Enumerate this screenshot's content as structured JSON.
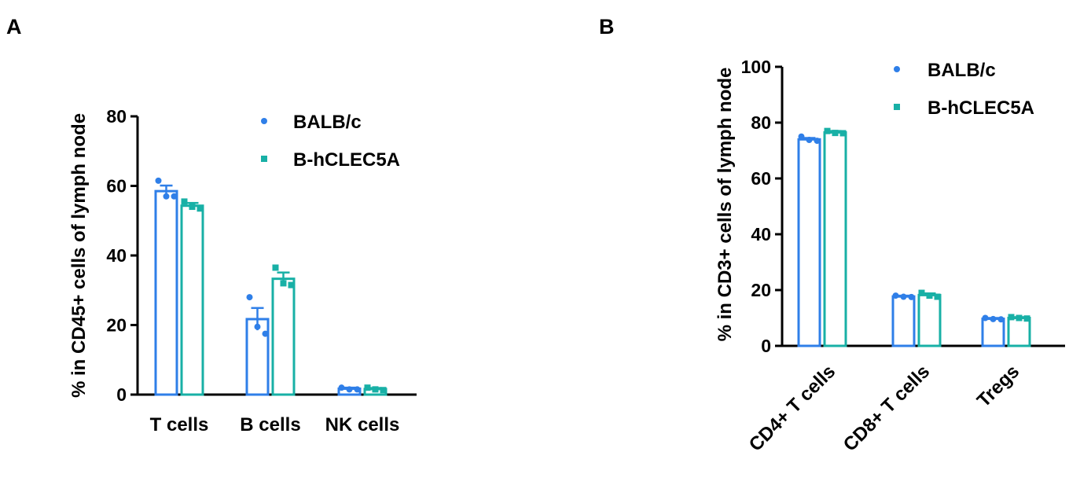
{
  "colors": {
    "BALB/c": "#2f7fe8",
    "B-hCLEC5A": "#18b0a6",
    "axis": "#000000"
  },
  "chart_data": [
    {
      "panel_label": "A",
      "type": "bar",
      "ylabel": "% in CD45+ cells of lymph node",
      "xlabel": "",
      "ylim": [
        0,
        80
      ],
      "yticks": [
        0,
        20,
        40,
        60,
        80
      ],
      "categories": [
        "T cells",
        "B cells",
        "NK cells"
      ],
      "legend_position": "top-right",
      "series": [
        {
          "name": "BALB/c",
          "marker": "circle",
          "values": [
            58.5,
            21.7,
            1.7
          ],
          "errors": [
            1.6,
            3.2,
            0.3
          ],
          "points": [
            [
              61.5,
              57.0,
              57.0
            ],
            [
              28.0,
              19.5,
              17.5
            ],
            [
              2.0,
              1.5,
              1.5
            ]
          ]
        },
        {
          "name": "B-hCLEC5A",
          "marker": "square",
          "values": [
            54.3,
            33.3,
            1.6
          ],
          "errors": [
            0.8,
            1.8,
            0.3
          ],
          "points": [
            [
              55.5,
              54.0,
              53.5
            ],
            [
              36.5,
              32.0,
              31.5
            ],
            [
              2.0,
              1.5,
              1.3
            ]
          ]
        }
      ]
    },
    {
      "panel_label": "B",
      "type": "bar",
      "ylabel": "% in CD3+ cells of lymph node",
      "xlabel": "",
      "ylim": [
        0,
        100
      ],
      "yticks": [
        0,
        20,
        40,
        60,
        80,
        100
      ],
      "categories": [
        "CD4+ T cells",
        "CD8+ T cells",
        "Tregs"
      ],
      "xtick_rotation": -45,
      "legend_position": "top-right",
      "series": [
        {
          "name": "BALB/c",
          "marker": "circle",
          "values": [
            74.0,
            17.7,
            9.7
          ],
          "errors": [
            0.5,
            0.3,
            0.3
          ],
          "points": [
            [
              75.0,
              73.8,
              73.5
            ],
            [
              18.0,
              17.6,
              17.5
            ],
            [
              10.0,
              9.6,
              9.5
            ]
          ]
        },
        {
          "name": "B-hCLEC5A",
          "marker": "square",
          "values": [
            76.5,
            18.2,
            10.0
          ],
          "errors": [
            0.5,
            0.6,
            0.3
          ],
          "points": [
            [
              77.0,
              76.3,
              76.2
            ],
            [
              19.0,
              18.0,
              17.6
            ],
            [
              10.3,
              10.0,
              9.8
            ]
          ]
        }
      ]
    }
  ]
}
